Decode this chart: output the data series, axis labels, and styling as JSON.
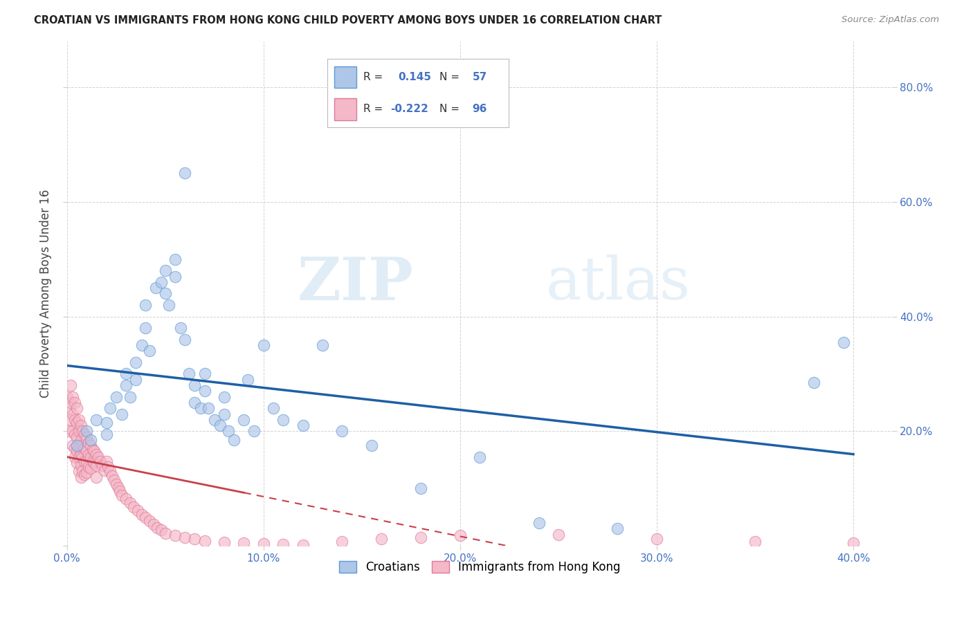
{
  "title": "CROATIAN VS IMMIGRANTS FROM HONG KONG CHILD POVERTY AMONG BOYS UNDER 16 CORRELATION CHART",
  "source": "Source: ZipAtlas.com",
  "ylabel": "Child Poverty Among Boys Under 16",
  "background_color": "#ffffff",
  "grid_color": "#cccccc",
  "croatians_color": "#aec6e8",
  "hk_color": "#f4b8c8",
  "croatians_edge": "#5b9bd5",
  "hk_edge": "#e07898",
  "blue_line_color": "#1f5fa6",
  "red_line_color": "#c8404a",
  "R_croatians": 0.145,
  "N_croatians": 57,
  "R_hk": -0.222,
  "N_hk": 96,
  "legend_label_croatians": "Croatians",
  "legend_label_hk": "Immigrants from Hong Kong",
  "watermark_zip": "ZIP",
  "watermark_atlas": "atlas",
  "xlim": [
    0.0,
    0.42
  ],
  "ylim": [
    0.0,
    0.88
  ],
  "xticks": [
    0.0,
    0.1,
    0.2,
    0.3,
    0.4
  ],
  "yticks": [
    0.0,
    0.2,
    0.4,
    0.6,
    0.8
  ],
  "croatians_x": [
    0.005,
    0.01,
    0.012,
    0.015,
    0.02,
    0.02,
    0.022,
    0.025,
    0.028,
    0.03,
    0.03,
    0.032,
    0.035,
    0.035,
    0.038,
    0.04,
    0.04,
    0.042,
    0.045,
    0.048,
    0.05,
    0.05,
    0.052,
    0.055,
    0.055,
    0.058,
    0.06,
    0.06,
    0.062,
    0.065,
    0.065,
    0.068,
    0.07,
    0.07,
    0.072,
    0.075,
    0.078,
    0.08,
    0.08,
    0.082,
    0.085,
    0.09,
    0.092,
    0.095,
    0.1,
    0.105,
    0.11,
    0.12,
    0.13,
    0.14,
    0.155,
    0.18,
    0.21,
    0.24,
    0.28,
    0.38,
    0.395
  ],
  "croatians_y": [
    0.175,
    0.2,
    0.185,
    0.22,
    0.215,
    0.195,
    0.24,
    0.26,
    0.23,
    0.28,
    0.3,
    0.26,
    0.32,
    0.29,
    0.35,
    0.38,
    0.42,
    0.34,
    0.45,
    0.46,
    0.48,
    0.44,
    0.42,
    0.5,
    0.47,
    0.38,
    0.65,
    0.36,
    0.3,
    0.28,
    0.25,
    0.24,
    0.27,
    0.3,
    0.24,
    0.22,
    0.21,
    0.26,
    0.23,
    0.2,
    0.185,
    0.22,
    0.29,
    0.2,
    0.35,
    0.24,
    0.22,
    0.21,
    0.35,
    0.2,
    0.175,
    0.1,
    0.155,
    0.04,
    0.03,
    0.285,
    0.355
  ],
  "hk_x": [
    0.0,
    0.001,
    0.001,
    0.002,
    0.002,
    0.002,
    0.003,
    0.003,
    0.003,
    0.003,
    0.004,
    0.004,
    0.004,
    0.004,
    0.004,
    0.005,
    0.005,
    0.005,
    0.005,
    0.005,
    0.006,
    0.006,
    0.006,
    0.006,
    0.006,
    0.007,
    0.007,
    0.007,
    0.007,
    0.007,
    0.008,
    0.008,
    0.008,
    0.008,
    0.009,
    0.009,
    0.009,
    0.009,
    0.01,
    0.01,
    0.01,
    0.01,
    0.011,
    0.011,
    0.011,
    0.012,
    0.012,
    0.012,
    0.013,
    0.013,
    0.014,
    0.014,
    0.015,
    0.015,
    0.015,
    0.016,
    0.017,
    0.018,
    0.019,
    0.02,
    0.021,
    0.022,
    0.023,
    0.024,
    0.025,
    0.026,
    0.027,
    0.028,
    0.03,
    0.032,
    0.034,
    0.036,
    0.038,
    0.04,
    0.042,
    0.044,
    0.046,
    0.048,
    0.05,
    0.055,
    0.06,
    0.065,
    0.07,
    0.08,
    0.09,
    0.1,
    0.11,
    0.12,
    0.14,
    0.16,
    0.18,
    0.2,
    0.25,
    0.3,
    0.35,
    0.4
  ],
  "hk_y": [
    0.26,
    0.24,
    0.2,
    0.28,
    0.25,
    0.22,
    0.26,
    0.23,
    0.2,
    0.175,
    0.25,
    0.22,
    0.195,
    0.17,
    0.155,
    0.24,
    0.215,
    0.19,
    0.165,
    0.145,
    0.22,
    0.2,
    0.175,
    0.155,
    0.13,
    0.21,
    0.185,
    0.16,
    0.14,
    0.12,
    0.2,
    0.175,
    0.155,
    0.13,
    0.195,
    0.17,
    0.148,
    0.125,
    0.19,
    0.165,
    0.148,
    0.128,
    0.18,
    0.16,
    0.138,
    0.175,
    0.155,
    0.135,
    0.168,
    0.148,
    0.165,
    0.145,
    0.16,
    0.14,
    0.12,
    0.155,
    0.148,
    0.14,
    0.132,
    0.148,
    0.138,
    0.13,
    0.122,
    0.115,
    0.108,
    0.102,
    0.095,
    0.088,
    0.082,
    0.075,
    0.068,
    0.062,
    0.055,
    0.05,
    0.044,
    0.038,
    0.032,
    0.028,
    0.022,
    0.018,
    0.015,
    0.012,
    0.009,
    0.006,
    0.005,
    0.004,
    0.003,
    0.002,
    0.008,
    0.012,
    0.015,
    0.018,
    0.02,
    0.012,
    0.008,
    0.005
  ]
}
